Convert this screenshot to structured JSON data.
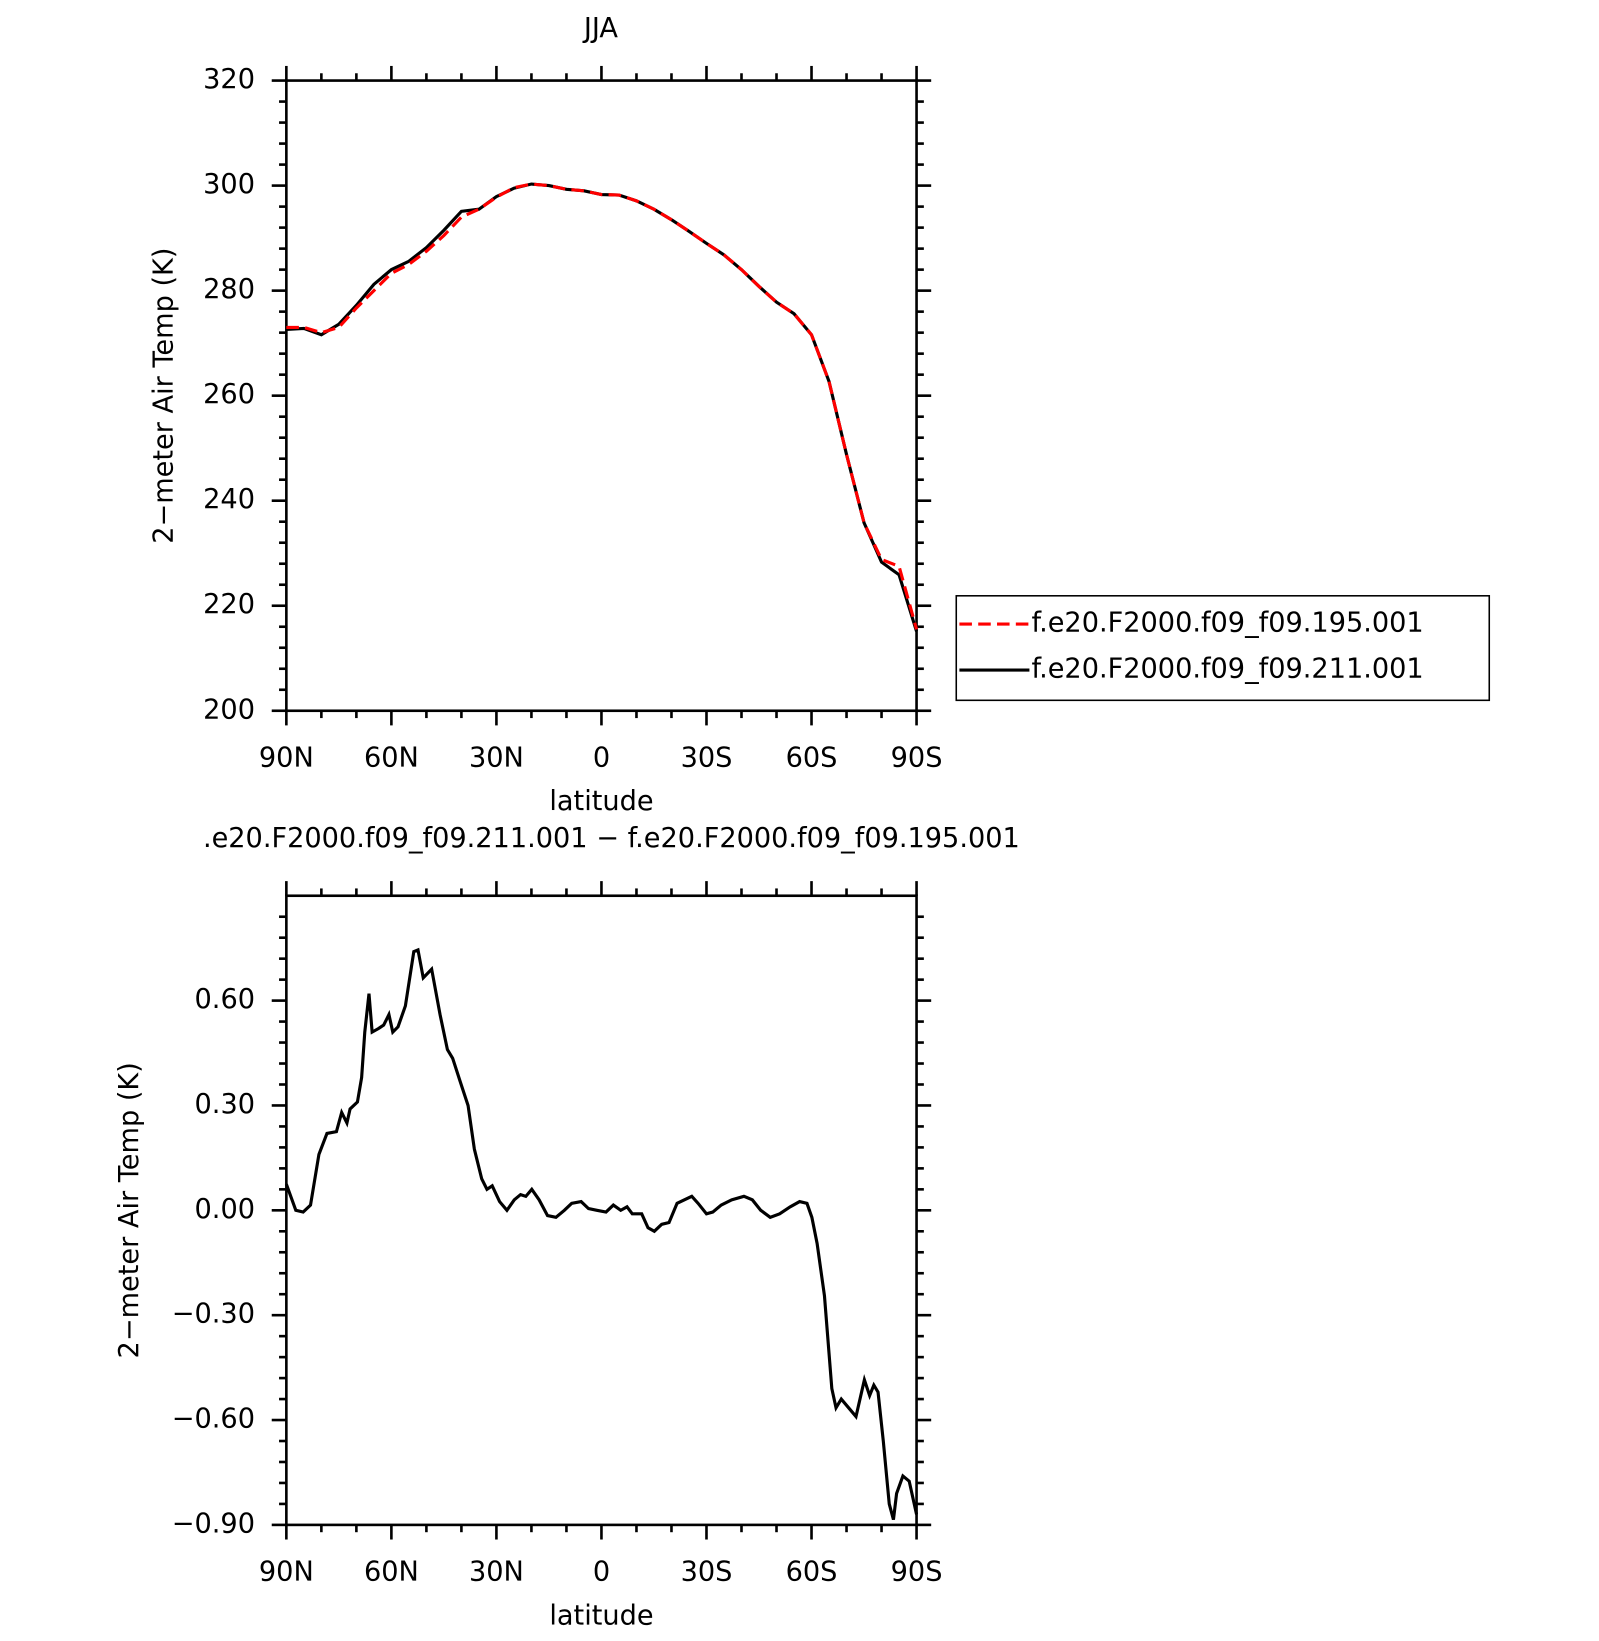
{
  "chart_data": [
    {
      "type": "line",
      "title": "JJA",
      "ylabel": "2−meter Air Temp (K)",
      "xlabel": "latitude",
      "x": [
        90,
        85,
        80,
        75,
        70,
        65,
        60,
        55,
        50,
        45,
        40,
        35,
        30,
        25,
        20,
        15,
        10,
        5,
        0,
        -5,
        -10,
        -15,
        -20,
        -25,
        -30,
        -35,
        -40,
        -45,
        -50,
        -55,
        -60,
        -65,
        -70,
        -75,
        -80,
        -85,
        -90
      ],
      "series": [
        {
          "name": "f.e20.F2000.f09_f09.195.001",
          "color": "#ff0000",
          "line_style": "dashed",
          "values": [
            273,
            273,
            272,
            273,
            276.7,
            280,
            283.3,
            285,
            287.5,
            290.5,
            294,
            295.5,
            297.8,
            299.6,
            300.3,
            300,
            299.3,
            299,
            298.3,
            298.2,
            297.1,
            295.5,
            293.5,
            291.3,
            289,
            286.8,
            284,
            280.8,
            277.8,
            275.6,
            271.6,
            262.7,
            248.8,
            235.8,
            228.8,
            227.5,
            215.5
          ]
        },
        {
          "name": "f.e20.F2000.f09_f09.211.001",
          "color": "#000000",
          "line_style": "solid",
          "values": [
            272.6,
            272.8,
            271.6,
            273.6,
            277.2,
            281.2,
            284,
            285.6,
            288.2,
            291.5,
            295.1,
            295.5,
            297.9,
            299.5,
            300.3,
            300,
            299.3,
            299,
            298.3,
            298.2,
            297.1,
            295.5,
            293.5,
            291.3,
            289,
            286.8,
            284,
            280.8,
            277.8,
            275.6,
            271.6,
            262.7,
            248.8,
            235.8,
            228.3,
            225.9,
            215.1
          ]
        }
      ],
      "xlim": [
        90,
        -90
      ],
      "xticks": [
        {
          "value": 90,
          "label": "90N"
        },
        {
          "value": 60,
          "label": "60N"
        },
        {
          "value": 30,
          "label": "30N"
        },
        0,
        {
          "value": -30,
          "label": "30S"
        },
        {
          "value": -60,
          "label": "60S"
        },
        {
          "value": -90,
          "label": "90S"
        }
      ],
      "ylim": [
        200,
        320
      ],
      "yticks": [
        200,
        220,
        240,
        260,
        280,
        300,
        320
      ],
      "legend": "right"
    },
    {
      "type": "line",
      "title": ".e20.F2000.f09_f09.211.001 − f.e20.F2000.f09_f09.195.001",
      "ylabel": "2−meter Air Temp (K)",
      "xlabel": "latitude",
      "x": [
        90,
        87.3,
        85.2,
        83.1,
        80.7,
        78.4,
        75.7,
        74.2,
        72.7,
        71.8,
        69.7,
        68.5,
        67.6,
        66.4,
        65.5,
        63.7,
        62.2,
        60.7,
        59.6,
        58.1,
        56,
        53.6,
        52.4,
        50.9,
        48.5,
        46.1,
        44,
        42.5,
        40.4,
        38.1,
        36.3,
        34.2,
        32.7,
        31.2,
        29.1,
        27,
        24.9,
        23.1,
        21.6,
        19.9,
        17.8,
        15.4,
        13,
        10.6,
        8.5,
        5.8,
        3.7,
        1.3,
        -1.3,
        -3.4,
        -5.5,
        -7.3,
        -8.8,
        -11.5,
        -13.3,
        -15.1,
        -17.2,
        -19.3,
        -21.6,
        -23.7,
        -25.8,
        -27.6,
        -30,
        -31.8,
        -34.2,
        -37.2,
        -40.7,
        -43.1,
        -45.5,
        -48.2,
        -50.9,
        -53.9,
        -56.6,
        -58.7,
        -60.1,
        -61.6,
        -63.7,
        -65.8,
        -67,
        -68.5,
        -70.6,
        -72.7,
        -75.1,
        -76.6,
        -77.8,
        -79,
        -80.5,
        -82.2,
        -83.4,
        -84.3,
        -86.1,
        -87.9,
        -90
      ],
      "values": [
        0.075,
        0,
        -0.005,
        0.015,
        0.16,
        0.22,
        0.225,
        0.28,
        0.25,
        0.29,
        0.31,
        0.38,
        0.51,
        0.62,
        0.51,
        0.52,
        0.53,
        0.56,
        0.51,
        0.525,
        0.585,
        0.74,
        0.745,
        0.665,
        0.69,
        0.56,
        0.46,
        0.435,
        0.37,
        0.3,
        0.175,
        0.09,
        0.06,
        0.07,
        0.025,
        0,
        0.03,
        0.045,
        0.04,
        0.06,
        0.03,
        -0.015,
        -0.02,
        0,
        0.02,
        0.025,
        0.005,
        0,
        -0.005,
        0.015,
        0,
        0.01,
        -0.01,
        -0.01,
        -0.05,
        -0.06,
        -0.04,
        -0.035,
        0.02,
        0.03,
        0.04,
        0.02,
        -0.01,
        -0.005,
        0.015,
        0.03,
        0.04,
        0.03,
        0,
        -0.02,
        -0.01,
        0.01,
        0.025,
        0.02,
        -0.02,
        -0.095,
        -0.245,
        -0.51,
        -0.565,
        -0.54,
        -0.565,
        -0.59,
        -0.485,
        -0.53,
        -0.5,
        -0.52,
        -0.66,
        -0.84,
        -0.885,
        -0.81,
        -0.76,
        -0.775,
        -0.87
      ],
      "color": "#000000",
      "xlim": [
        90,
        -90
      ],
      "xticks": [
        {
          "value": 90,
          "label": "90N"
        },
        {
          "value": 60,
          "label": "60N"
        },
        {
          "value": 30,
          "label": "30N"
        },
        0,
        {
          "value": -30,
          "label": "30S"
        },
        {
          "value": -60,
          "label": "60S"
        },
        {
          "value": -90,
          "label": "90S"
        }
      ],
      "ylim": [
        -0.9,
        0.9
      ],
      "yticks": [
        {
          "value": -0.9,
          "label": "−0.90"
        },
        {
          "value": -0.6,
          "label": "−0.60"
        },
        {
          "value": -0.3,
          "label": "−0.30"
        },
        {
          "value": 0,
          "label": "0.00"
        },
        {
          "value": 0.3,
          "label": "0.30"
        },
        {
          "value": 0.6,
          "label": "0.60"
        }
      ]
    }
  ]
}
